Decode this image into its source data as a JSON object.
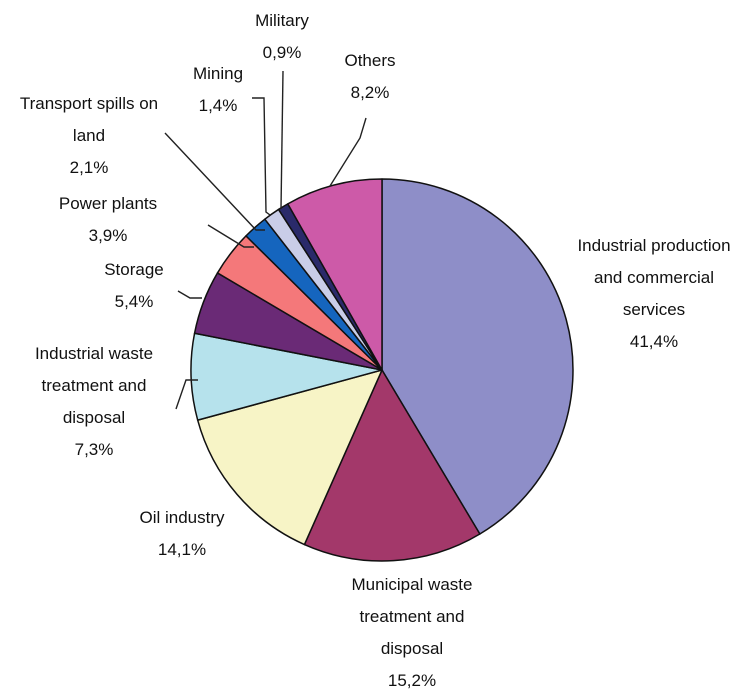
{
  "chart_data": {
    "type": "pie",
    "title": "",
    "start": "12 o'clock",
    "direction": "clockwise",
    "legend": "none",
    "slices": [
      {
        "label": "Industrial production and commercial services",
        "label_lines": [
          "Industrial production",
          "and commercial",
          "services"
        ],
        "value": 41.4,
        "value_label": "41,4%",
        "color": "#8E8EC8"
      },
      {
        "label": "Municipal waste treatment and disposal",
        "label_lines": [
          "Municipal waste",
          "treatment and",
          "disposal"
        ],
        "value": 15.2,
        "value_label": "15,2%",
        "color": "#A3386A"
      },
      {
        "label": "Oil industry",
        "label_lines": [
          "Oil industry"
        ],
        "value": 14.1,
        "value_label": "14,1%",
        "color": "#F7F4C6"
      },
      {
        "label": "Industrial waste treatment and disposal",
        "label_lines": [
          "Industrial waste",
          "treatment and",
          "disposal"
        ],
        "value": 7.3,
        "value_label": "7,3%",
        "color": "#B6E2EC"
      },
      {
        "label": "Storage",
        "label_lines": [
          "Storage"
        ],
        "value": 5.4,
        "value_label": "5,4%",
        "color": "#6A2A76"
      },
      {
        "label": "Power plants",
        "label_lines": [
          "Power plants"
        ],
        "value": 3.9,
        "value_label": "3,9%",
        "color": "#F4787A"
      },
      {
        "label": "Transport spills on land",
        "label_lines": [
          "Transport spills on",
          "land"
        ],
        "value": 2.1,
        "value_label": "2,1%",
        "color": "#1565BE"
      },
      {
        "label": "Mining",
        "label_lines": [
          "Mining"
        ],
        "value": 1.4,
        "value_label": "1,4%",
        "color": "#C9CDE8"
      },
      {
        "label": "Military",
        "label_lines": [
          "Military"
        ],
        "value": 0.9,
        "value_label": "0,9%",
        "color": "#2A2A6A"
      },
      {
        "label": "Others",
        "label_lines": [
          "Others"
        ],
        "value": 8.2,
        "value_label": "8,2%",
        "color": "#CD5AA8"
      }
    ]
  }
}
